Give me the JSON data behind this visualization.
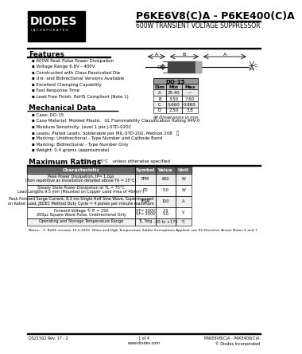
{
  "title": "P6KE6V8(C)A - P6KE400(C)A",
  "subtitle": "600W TRANSIENT VOLTAGE SUPPRESSOR",
  "features_title": "Features",
  "features": [
    "600W Peak Pulse Power Dissipation",
    "Voltage Range 6.8V - 400V",
    "Constructed with Glass Passivated Die",
    "Uni- and Bidirectional Versions Available",
    "Excellent Clamping Capability",
    "Fast Response Time",
    "Lead Free Finish, RoHS Compliant (Note 1)"
  ],
  "mech_title": "Mechanical Data",
  "mech_data": [
    "Case: DO-15",
    "Case Material: Molded Plastic.  UL Flammability Classification Rating 94V-0",
    "Moisture Sensitivity: Level 1 per J-STD-020C",
    "Leads: Plated Leads, Solderable per MIL-STD-202, Method 208   ⓘ",
    "Marking: Unidirectional - Type Number and Cathode Band",
    "Marking: Bidirectional - Type Number Only",
    "Weight: 0.4 grams (approximate)"
  ],
  "dim_table_title": "DO-15",
  "dim_headers": [
    "Dim",
    "Min",
    "Max"
  ],
  "dim_rows": [
    [
      "A",
      "25.40",
      "—"
    ],
    [
      "B",
      "3.50",
      "7.60"
    ],
    [
      "C",
      "0.660",
      "0.860"
    ],
    [
      "D",
      "2.50",
      "3.8"
    ]
  ],
  "dim_note": "All Dimensions in mm",
  "max_ratings_title": "Maximum Ratings",
  "max_ratings_note": " @TL = 25°C   unless otherwise specified",
  "ratings_headers": [
    "Characteristic",
    "Symbol",
    "Value",
    "Unit"
  ],
  "ratings_rows": [
    [
      "Peak Power Dissipation, tP= 1.0μs\n(Non repetitive as installation detailed above TA = 25°C)",
      "PPM",
      "600",
      "W"
    ],
    [
      "Steady State Power Dissipation at TL = 75°C\nLead Lengths 9.5 mm (Mounted on Copper Land Area of 40mm²)",
      "PD",
      "5.0",
      "W"
    ],
    [
      "Peak Forward Surge Current, 8.3 ms Single Half Sine Wave, Superimposed\non Rated Load, JEDEC Method Duty Cycle = 4 pulses per minute maximum",
      "IFSM",
      "100",
      "A"
    ],
    [
      "Forward Voltage ® IF = 25A\n300μs Square Wave Pulse, Unidirectional Only",
      "VF= 200V\nVF= 200V",
      "3.5\n5.0",
      "V"
    ],
    [
      "Operating and Storage Temperature Range",
      "TJ, Tstg",
      "-65 to +175",
      "°C"
    ]
  ],
  "footer_left": "DS21502 Rev. 17 - 2",
  "footer_center": "1 of 4",
  "footer_url": "www.diodes.com",
  "footer_right": "P6KE6V8(C)A - P6KE400(C)A",
  "footer_copy": "© Diodes Incorporated",
  "bg_color": "#ffffff"
}
